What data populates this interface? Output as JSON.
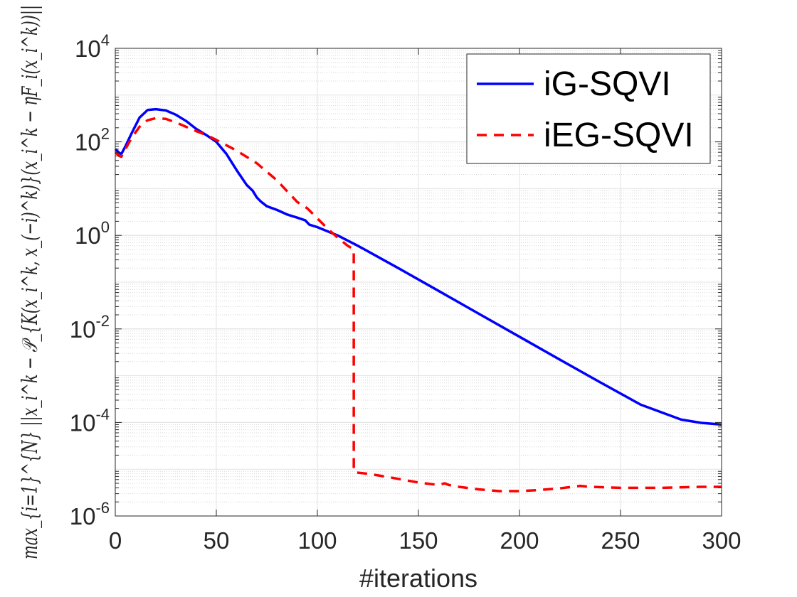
{
  "chart_data": {
    "type": "line",
    "title": "",
    "xlabel": "#iterations",
    "ylabel": "max_{i=1}^{N} ||x_i^k − 𝒫_{K(x_i^k, x_(−i)^k)}(x_i^k − ηF_i(x_i^k))||",
    "xlim": [
      0,
      300
    ],
    "ylim": [
      1e-06,
      10000
    ],
    "yscale": "log",
    "grid": true,
    "legend_position": "top-right",
    "x_ticks": [
      0,
      50,
      100,
      150,
      200,
      250,
      300
    ],
    "x_tick_labels": [
      "0",
      "50",
      "100",
      "150",
      "200",
      "250",
      "300"
    ],
    "y_ticks": [
      {
        "value": 1e-06,
        "base": "10",
        "exp": "-6"
      },
      {
        "value": 0.0001,
        "base": "10",
        "exp": "-4"
      },
      {
        "value": 0.01,
        "base": "10",
        "exp": "-2"
      },
      {
        "value": 1,
        "base": "10",
        "exp": "0"
      },
      {
        "value": 100,
        "base": "10",
        "exp": "2"
      },
      {
        "value": 10000,
        "base": "10",
        "exp": "4"
      }
    ],
    "series": [
      {
        "name": "iG-SQVI",
        "color": "#0000ff",
        "style": "solid",
        "x": [
          0,
          2,
          3,
          5,
          8,
          12,
          16,
          20,
          25,
          30,
          35,
          40,
          45,
          50,
          55,
          60,
          65,
          68,
          70,
          72,
          75,
          80,
          85,
          90,
          94,
          96,
          100,
          110,
          120,
          140,
          160,
          180,
          200,
          220,
          240,
          260,
          280,
          290,
          300
        ],
        "y": [
          70,
          58,
          55,
          80,
          150,
          330,
          480,
          500,
          470,
          380,
          280,
          190,
          140,
          100,
          55,
          25,
          12,
          9,
          6.5,
          5.3,
          4.2,
          3.5,
          2.8,
          2.4,
          2.1,
          1.7,
          1.5,
          1.0,
          0.6,
          0.2,
          0.065,
          0.021,
          0.0068,
          0.0022,
          0.00072,
          0.00024,
          0.000115,
          9.8e-05,
          9e-05
        ]
      },
      {
        "name": "iEG-SQVI",
        "color": "#ff0000",
        "style": "dashed",
        "x": [
          0,
          2,
          3,
          5,
          8,
          12,
          16,
          20,
          25,
          30,
          35,
          40,
          45,
          50,
          60,
          70,
          80,
          90,
          95,
          100,
          105,
          110,
          115,
          118,
          118.01,
          119,
          125,
          135,
          150,
          160,
          163,
          165,
          170,
          180,
          190,
          200,
          210,
          220,
          230,
          235,
          250,
          270,
          290,
          300
        ],
        "y": [
          60,
          50,
          48,
          70,
          120,
          210,
          290,
          320,
          310,
          260,
          210,
          170,
          140,
          110,
          65,
          35,
          15,
          5.2,
          3.8,
          2.3,
          1.4,
          0.9,
          0.6,
          0.5,
          9e-06,
          8.5e-06,
          8e-06,
          6.8e-06,
          5.2e-06,
          4.6e-06,
          5e-06,
          4.6e-06,
          4.2e-06,
          3.7e-06,
          3.4e-06,
          3.4e-06,
          3.6e-06,
          3.9e-06,
          4.4e-06,
          4.2e-06,
          4e-06,
          4e-06,
          4.2e-06,
          4.2e-06
        ]
      }
    ]
  }
}
